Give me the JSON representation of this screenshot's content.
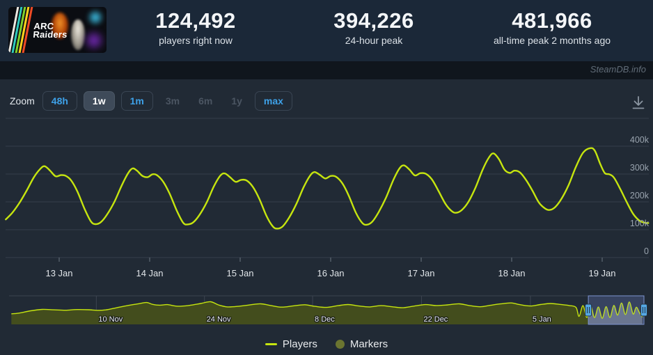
{
  "header": {
    "game_title_line1": "ARC",
    "game_title_line2": "Raiders",
    "stats": [
      {
        "value": "124,492",
        "label": "players right now"
      },
      {
        "value": "394,226",
        "label": "24-hour peak"
      },
      {
        "value": "481,966",
        "label": "all-time peak 2 months ago"
      }
    ]
  },
  "watermark": "SteamDB.info",
  "toolbar": {
    "zoom_label": "Zoom",
    "buttons": [
      {
        "label": "48h",
        "state": "enabled"
      },
      {
        "label": "1w",
        "state": "active"
      },
      {
        "label": "1m",
        "state": "enabled"
      },
      {
        "label": "3m",
        "state": "disabled"
      },
      {
        "label": "6m",
        "state": "disabled"
      },
      {
        "label": "1y",
        "state": "disabled"
      },
      {
        "label": "max",
        "state": "enabled"
      }
    ]
  },
  "legend": {
    "players_label": "Players",
    "markers_label": "Markers"
  },
  "colors": {
    "header_bg": "#1b2838",
    "band_bg": "#10161d",
    "panel_bg": "#212a35",
    "grid": "#353e4a",
    "players_line": "#c6e50f",
    "markers_dot": "#6b7530",
    "nav_area_fill": "#434d1d",
    "accent_blue": "#3ea1e8",
    "handle_blue": "#55a9e6",
    "selection_border": "#7d94cf"
  },
  "chart_data": {
    "type": "line",
    "title": "",
    "ylabel": "",
    "xlabel": "",
    "grid": true,
    "legend_position": "bottom",
    "ylim": [
      0,
      500000
    ],
    "xlim_days": [
      -0.59,
      6.51
    ],
    "y_ticks": [
      {
        "value": 0,
        "label": "0"
      },
      {
        "value": 100000,
        "label": "100k"
      },
      {
        "value": 200000,
        "label": "200k"
      },
      {
        "value": 300000,
        "label": "300k"
      },
      {
        "value": 400000,
        "label": "400k"
      },
      {
        "value": 500000,
        "label": ""
      }
    ],
    "x_ticks": [
      {
        "day": 0,
        "label": "13 Jan"
      },
      {
        "day": 1,
        "label": "14 Jan"
      },
      {
        "day": 2,
        "label": "15 Jan"
      },
      {
        "day": 3,
        "label": "16 Jan"
      },
      {
        "day": 4,
        "label": "17 Jan"
      },
      {
        "day": 5,
        "label": "18 Jan"
      },
      {
        "day": 6,
        "label": "19 Jan"
      }
    ],
    "series": [
      {
        "name": "Players",
        "color": "#c6e50f",
        "points": [
          [
            -0.59,
            137000
          ],
          [
            -0.52,
            160000
          ],
          [
            -0.44,
            196000
          ],
          [
            -0.36,
            240000
          ],
          [
            -0.28,
            288000
          ],
          [
            -0.21,
            318000
          ],
          [
            -0.16,
            328000
          ],
          [
            -0.1,
            312000
          ],
          [
            -0.04,
            292000
          ],
          [
            0.02,
            296000
          ],
          [
            0.07,
            294000
          ],
          [
            0.13,
            278000
          ],
          [
            0.2,
            238000
          ],
          [
            0.28,
            175000
          ],
          [
            0.35,
            130000
          ],
          [
            0.4,
            120000
          ],
          [
            0.46,
            127000
          ],
          [
            0.53,
            155000
          ],
          [
            0.61,
            200000
          ],
          [
            0.69,
            258000
          ],
          [
            0.76,
            302000
          ],
          [
            0.81,
            320000
          ],
          [
            0.86,
            312000
          ],
          [
            0.92,
            293000
          ],
          [
            0.98,
            289000
          ],
          [
            1.03,
            299000
          ],
          [
            1.08,
            296000
          ],
          [
            1.15,
            272000
          ],
          [
            1.22,
            230000
          ],
          [
            1.3,
            168000
          ],
          [
            1.37,
            125000
          ],
          [
            1.42,
            119000
          ],
          [
            1.48,
            126000
          ],
          [
            1.55,
            153000
          ],
          [
            1.63,
            198000
          ],
          [
            1.71,
            256000
          ],
          [
            1.78,
            294000
          ],
          [
            1.83,
            302000
          ],
          [
            1.89,
            288000
          ],
          [
            1.95,
            272000
          ],
          [
            2.01,
            279000
          ],
          [
            2.07,
            277000
          ],
          [
            2.14,
            254000
          ],
          [
            2.21,
            212000
          ],
          [
            2.29,
            150000
          ],
          [
            2.36,
            112000
          ],
          [
            2.41,
            104000
          ],
          [
            2.47,
            112000
          ],
          [
            2.54,
            143000
          ],
          [
            2.62,
            192000
          ],
          [
            2.7,
            252000
          ],
          [
            2.77,
            293000
          ],
          [
            2.82,
            307000
          ],
          [
            2.88,
            297000
          ],
          [
            2.94,
            284000
          ],
          [
            3.0,
            293000
          ],
          [
            3.06,
            290000
          ],
          [
            3.13,
            266000
          ],
          [
            3.2,
            222000
          ],
          [
            3.28,
            160000
          ],
          [
            3.35,
            124000
          ],
          [
            3.4,
            118000
          ],
          [
            3.46,
            129000
          ],
          [
            3.53,
            163000
          ],
          [
            3.61,
            214000
          ],
          [
            3.69,
            277000
          ],
          [
            3.76,
            320000
          ],
          [
            3.81,
            331000
          ],
          [
            3.87,
            316000
          ],
          [
            3.93,
            295000
          ],
          [
            3.99,
            303000
          ],
          [
            4.05,
            301000
          ],
          [
            4.12,
            280000
          ],
          [
            4.19,
            240000
          ],
          [
            4.27,
            192000
          ],
          [
            4.34,
            166000
          ],
          [
            4.39,
            161000
          ],
          [
            4.45,
            171000
          ],
          [
            4.52,
            199000
          ],
          [
            4.6,
            251000
          ],
          [
            4.68,
            316000
          ],
          [
            4.75,
            360000
          ],
          [
            4.8,
            374000
          ],
          [
            4.86,
            353000
          ],
          [
            4.92,
            316000
          ],
          [
            4.98,
            304000
          ],
          [
            5.03,
            312000
          ],
          [
            5.09,
            306000
          ],
          [
            5.16,
            278000
          ],
          [
            5.23,
            240000
          ],
          [
            5.3,
            198000
          ],
          [
            5.37,
            176000
          ],
          [
            5.42,
            171000
          ],
          [
            5.48,
            181000
          ],
          [
            5.55,
            211000
          ],
          [
            5.63,
            261000
          ],
          [
            5.71,
            326000
          ],
          [
            5.79,
            377000
          ],
          [
            5.87,
            393000
          ],
          [
            5.92,
            383000
          ],
          [
            5.98,
            335000
          ],
          [
            6.03,
            303000
          ],
          [
            6.08,
            299000
          ],
          [
            6.13,
            287000
          ],
          [
            6.2,
            246000
          ],
          [
            6.27,
            200000
          ],
          [
            6.34,
            158000
          ],
          [
            6.41,
            133000
          ],
          [
            6.47,
            125000
          ],
          [
            6.51,
            124000
          ]
        ]
      }
    ],
    "navigator": {
      "ylim": [
        0,
        500000
      ],
      "day_range": [
        -0.3,
        81.9
      ],
      "selection_day_range": [
        74.7,
        81.9
      ],
      "x_ticks": [
        {
          "day": 11.0,
          "label": "10 Nov"
        },
        {
          "day": 25.0,
          "label": "24 Nov"
        },
        {
          "day": 39.0,
          "label": "8 Dec"
        },
        {
          "day": 53.1,
          "label": "22 Dec"
        },
        {
          "day": 67.2,
          "label": "5 Jan"
        }
      ],
      "points": [
        [
          0,
          185000
        ],
        [
          1,
          198000
        ],
        [
          2.5,
          238000
        ],
        [
          4,
          262000
        ],
        [
          5.5,
          255000
        ],
        [
          7,
          248000
        ],
        [
          8.5,
          260000
        ],
        [
          10,
          256000
        ],
        [
          11.2,
          246000
        ],
        [
          12.2,
          254000
        ],
        [
          13.5,
          288000
        ],
        [
          15,
          328000
        ],
        [
          16.5,
          362000
        ],
        [
          17.5,
          383000
        ],
        [
          18.3,
          350000
        ],
        [
          19.2,
          336000
        ],
        [
          20.2,
          346000
        ],
        [
          21.5,
          318000
        ],
        [
          23,
          332000
        ],
        [
          24.5,
          366000
        ],
        [
          25.8,
          396000
        ],
        [
          26.8,
          342000
        ],
        [
          28,
          306000
        ],
        [
          29.5,
          318000
        ],
        [
          31,
          344000
        ],
        [
          32.3,
          360000
        ],
        [
          33.6,
          330000
        ],
        [
          35,
          302000
        ],
        [
          36.5,
          324000
        ],
        [
          38,
          344000
        ],
        [
          39.3,
          316000
        ],
        [
          40.8,
          298000
        ],
        [
          42.3,
          328000
        ],
        [
          43.6,
          348000
        ],
        [
          45,
          322000
        ],
        [
          46.4,
          306000
        ],
        [
          47.8,
          328000
        ],
        [
          49.1,
          312000
        ],
        [
          50.6,
          292000
        ],
        [
          52.1,
          320000
        ],
        [
          53.6,
          346000
        ],
        [
          55,
          330000
        ],
        [
          56.5,
          342000
        ],
        [
          58,
          360000
        ],
        [
          59.2,
          332000
        ],
        [
          60.7,
          308000
        ],
        [
          62,
          334000
        ],
        [
          63.3,
          358000
        ],
        [
          64.7,
          376000
        ],
        [
          65.8,
          346000
        ],
        [
          67.2,
          322000
        ],
        [
          68.5,
          348000
        ],
        [
          69.8,
          366000
        ],
        [
          71,
          350000
        ],
        [
          72.2,
          330000
        ],
        [
          73.1,
          298000
        ],
        [
          73.5,
          140000
        ],
        [
          74.0,
          328000
        ],
        [
          74.5,
          122000
        ],
        [
          75.0,
          322000
        ],
        [
          75.5,
          119000
        ],
        [
          76.0,
          304000
        ],
        [
          76.5,
          106000
        ],
        [
          77.0,
          310000
        ],
        [
          77.5,
          121000
        ],
        [
          78.0,
          332000
        ],
        [
          78.5,
          163000
        ],
        [
          79.0,
          375000
        ],
        [
          79.5,
          173000
        ],
        [
          80.0,
          393000
        ],
        [
          80.5,
          180000
        ],
        [
          80.9,
          300000
        ],
        [
          81.3,
          210000
        ],
        [
          81.7,
          126000
        ]
      ]
    }
  }
}
